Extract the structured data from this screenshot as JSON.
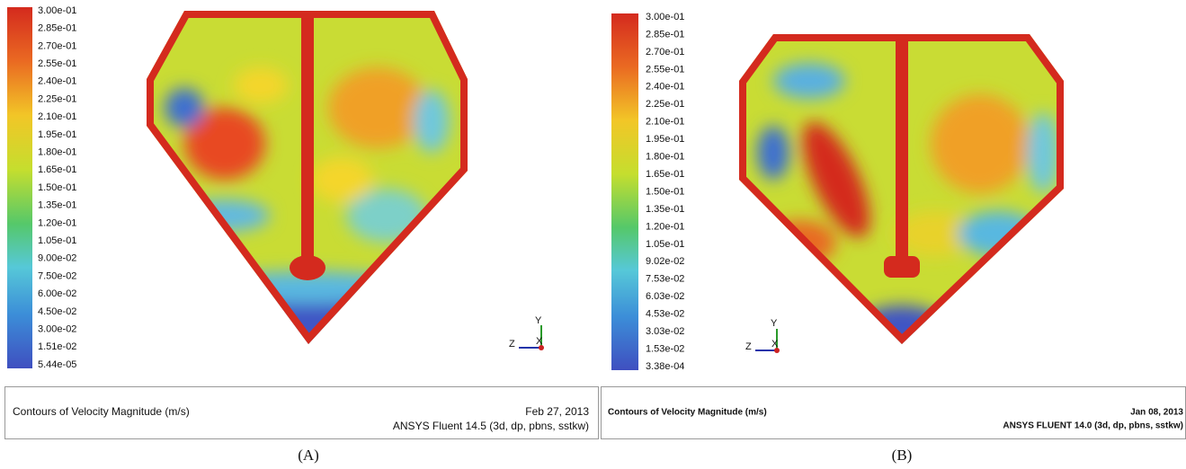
{
  "panels": [
    {
      "colorbar_labels": [
        "3.00e-01",
        "2.85e-01",
        "2.70e-01",
        "2.55e-01",
        "2.40e-01",
        "2.25e-01",
        "2.10e-01",
        "1.95e-01",
        "1.80e-01",
        "1.65e-01",
        "1.50e-01",
        "1.35e-01",
        "1.20e-01",
        "1.05e-01",
        "9.00e-02",
        "7.50e-02",
        "6.00e-02",
        "4.50e-02",
        "3.00e-02",
        "1.51e-02",
        "5.44e-05"
      ],
      "axes": [
        "Y",
        "Z",
        "X"
      ],
      "footer": {
        "title": "Contours of Velocity Magnitude (m/s)",
        "date": "Feb 27, 2013",
        "software": "ANSYS Fluent 14.5 (3d, dp, pbns, sstkw)"
      },
      "caption": "(A)"
    },
    {
      "colorbar_labels": [
        "3.00e-01",
        "2.85e-01",
        "2.70e-01",
        "2.55e-01",
        "2.40e-01",
        "2.25e-01",
        "2.10e-01",
        "1.95e-01",
        "1.80e-01",
        "1.65e-01",
        "1.50e-01",
        "1.35e-01",
        "1.20e-01",
        "1.05e-01",
        "9.02e-02",
        "7.53e-02",
        "6.03e-02",
        "4.53e-02",
        "3.03e-02",
        "1.53e-02",
        "3.38e-04"
      ],
      "axes": [
        "Y",
        "Z",
        "X"
      ],
      "footer": {
        "title": "Contours of Velocity Magnitude (m/s)",
        "date": "Jan 08, 2013",
        "software": "ANSYS FLUENT 14.0 (3d, dp, pbns, sstkw)"
      },
      "caption": "(B)"
    }
  ]
}
